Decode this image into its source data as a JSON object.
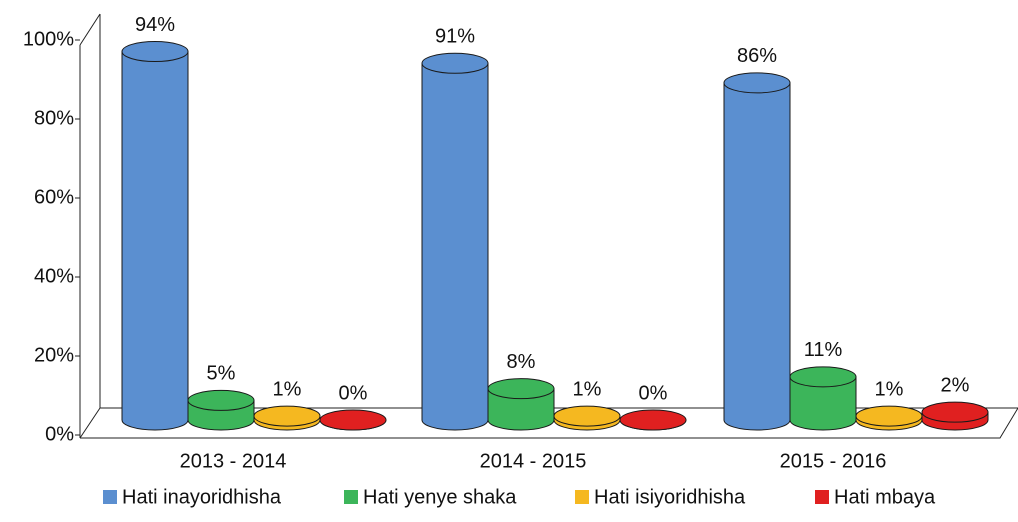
{
  "chart_data": {
    "type": "cylinder-bar",
    "categories": [
      "2013 - 2014",
      "2014 - 2015",
      "2015 - 2016"
    ],
    "series": [
      {
        "name": "Hati inayoridhisha",
        "color": "#5b8fd0",
        "values": [
          94,
          91,
          86
        ],
        "value_labels": [
          "94%",
          "91%",
          "86%"
        ]
      },
      {
        "name": "Hati yenye shaka",
        "color": "#3cb55a",
        "values": [
          5,
          8,
          11
        ],
        "value_labels": [
          "5%",
          "8%",
          "11%"
        ]
      },
      {
        "name": "Hati isiyoridhisha",
        "color": "#f5b820",
        "values": [
          1,
          1,
          1
        ],
        "value_labels": [
          "1%",
          "1%",
          "1%"
        ]
      },
      {
        "name": "Hati mbaya",
        "color": "#e02020",
        "values": [
          0,
          0,
          2
        ],
        "value_labels": [
          "0%",
          "0%",
          "2%"
        ]
      }
    ],
    "ylim": [
      0,
      100
    ],
    "yticks": [
      {
        "value": 0,
        "label": "0%"
      },
      {
        "value": 20,
        "label": "20%"
      },
      {
        "value": 40,
        "label": "40%"
      },
      {
        "value": 60,
        "label": "60%"
      },
      {
        "value": 80,
        "label": "80%"
      },
      {
        "value": 100,
        "label": "100%"
      }
    ],
    "legend": "bottom"
  }
}
